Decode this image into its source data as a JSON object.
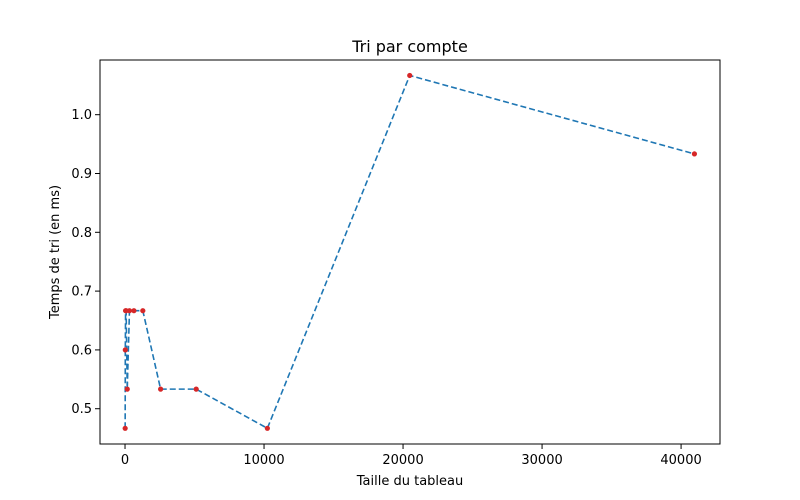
{
  "chart_data": {
    "type": "line",
    "title": "Tri par compte",
    "xlabel": "Taille du tableau",
    "ylabel": "Temps de tri (en ms)",
    "xlim": [
      -1800,
      42800
    ],
    "ylim": [
      0.44,
      1.093
    ],
    "xticks": [
      0,
      10000,
      20000,
      30000,
      40000
    ],
    "yticks": [
      0.5,
      0.6,
      0.7,
      0.8,
      0.9,
      1.0
    ],
    "grid": false,
    "series": [
      {
        "line_color": "#1f77b4",
        "marker_color": "#d62728",
        "line_style": "dashed",
        "x": [
          10,
          20,
          40,
          80,
          160,
          320,
          640,
          1280,
          2560,
          5120,
          10240,
          20480,
          40960
        ],
        "y": [
          0.4667,
          0.6,
          0.6667,
          0.6667,
          0.5333,
          0.6667,
          0.6667,
          0.6667,
          0.5333,
          0.5333,
          0.4667,
          1.0667,
          0.9333
        ]
      }
    ]
  }
}
